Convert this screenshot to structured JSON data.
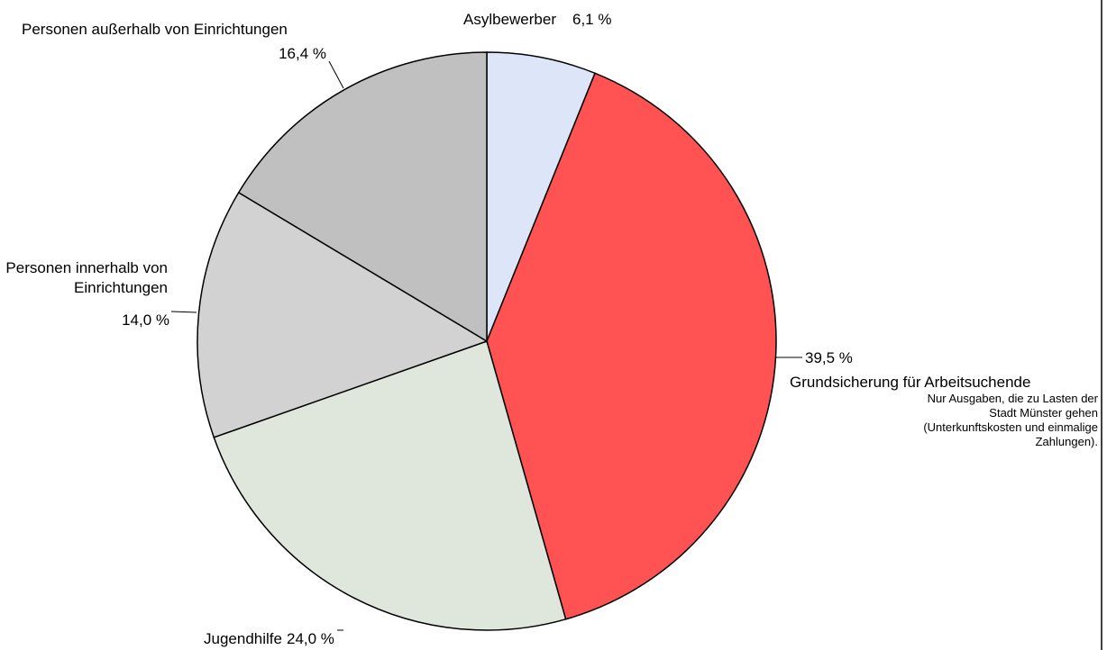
{
  "chart_data": {
    "type": "pie",
    "categories": [
      "Asylbewerber",
      "Grundsicherung für Arbeitsuchende",
      "Jugendhilfe",
      "Personen innerhalb von Einrichtungen",
      "Personen außerhalb von Einrichtungen"
    ],
    "values": [
      6.1,
      39.5,
      24.0,
      14.0,
      16.4
    ],
    "value_labels": [
      "6,1 %",
      "39,5 %",
      "24,0 %",
      "14,0 %",
      "16,4 %"
    ],
    "colors": [
      "#dce6f8",
      "#ff5252",
      "#dfe6dc",
      "#d2d2d2",
      "#c0c0c0"
    ],
    "annotation": "Nur Ausgaben, die zu Lasten der Stadt Münster gehen (Unterkunftskosten und einmalige Zahlungen)."
  }
}
